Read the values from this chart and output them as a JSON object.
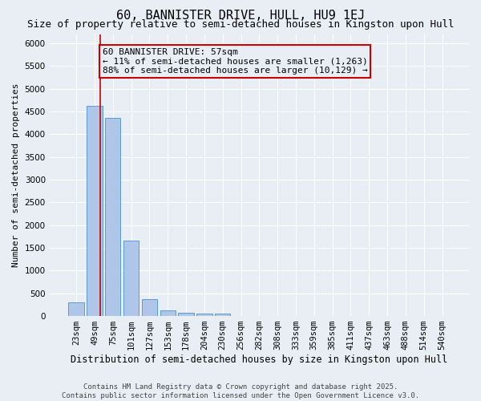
{
  "title": "60, BANNISTER DRIVE, HULL, HU9 1EJ",
  "subtitle": "Size of property relative to semi-detached houses in Kingston upon Hull",
  "xlabel": "Distribution of semi-detached houses by size in Kingston upon Hull",
  "ylabel": "Number of semi-detached properties",
  "categories": [
    "23sqm",
    "49sqm",
    "75sqm",
    "101sqm",
    "127sqm",
    "153sqm",
    "178sqm",
    "204sqm",
    "230sqm",
    "256sqm",
    "282sqm",
    "308sqm",
    "333sqm",
    "359sqm",
    "385sqm",
    "411sqm",
    "437sqm",
    "463sqm",
    "488sqm",
    "514sqm",
    "540sqm"
  ],
  "values": [
    310,
    4620,
    4350,
    1660,
    370,
    120,
    70,
    55,
    50,
    0,
    0,
    0,
    0,
    0,
    0,
    0,
    0,
    0,
    0,
    0,
    0
  ],
  "bar_color": "#aec6e8",
  "bar_edgecolor": "#5b9bd5",
  "vline_x": 1.3,
  "vline_color": "#cc0000",
  "annotation_text": "60 BANNISTER DRIVE: 57sqm\n← 11% of semi-detached houses are smaller (1,263)\n88% of semi-detached houses are larger (10,129) →",
  "annotation_box_color": "#cc0000",
  "ylim": [
    0,
    6200
  ],
  "yticks": [
    0,
    500,
    1000,
    1500,
    2000,
    2500,
    3000,
    3500,
    4000,
    4500,
    5000,
    5500,
    6000
  ],
  "background_color": "#e8eef4",
  "grid_color": "#ffffff",
  "footer_line1": "Contains HM Land Registry data © Crown copyright and database right 2025.",
  "footer_line2": "Contains public sector information licensed under the Open Government Licence v3.0.",
  "title_fontsize": 11,
  "subtitle_fontsize": 9,
  "xlabel_fontsize": 8.5,
  "ylabel_fontsize": 8,
  "tick_fontsize": 7.5,
  "annotation_fontsize": 8,
  "footer_fontsize": 6.5
}
